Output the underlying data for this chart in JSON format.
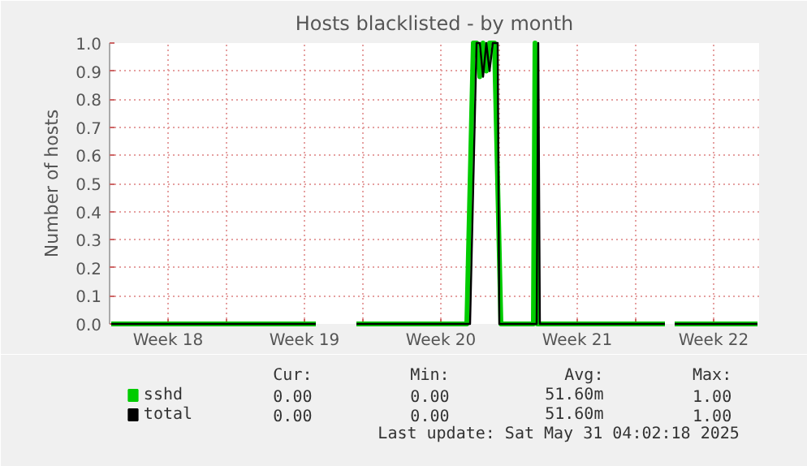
{
  "chart_data": {
    "type": "line",
    "title": "Hosts blacklisted - by month",
    "ylabel": "Number of hosts",
    "x": [
      "2025-04-28T02:00",
      "2025-05-08T14:00",
      "2025-05-09T02:00",
      "2025-05-10T16:00",
      "2025-05-16T12:00",
      "2025-05-16T20:00",
      "2025-05-17T00:00",
      "2025-05-17T04:00",
      "2025-05-17T08:00",
      "2025-05-17T12:00",
      "2025-05-17T16:00",
      "2025-05-17T22:00",
      "2025-05-18T00:00",
      "2025-05-19T22:00",
      "2025-05-20T00:00",
      "2025-05-20T02:00",
      "2025-05-26T12:00",
      "2025-05-26T18:00",
      "2025-05-27T00:00",
      "2025-05-31T06:00"
    ],
    "series": [
      {
        "name": "sshd",
        "color": "#00cc00",
        "x": [
          "2025-04-28T02:00",
          "2025-05-08T14:00",
          "2025-05-09T02:00",
          "2025-05-10T16:00",
          "2025-05-16T08:00",
          "2025-05-16T16:00",
          "2025-05-16T20:00",
          "2025-05-17T00:00",
          "2025-05-17T04:00",
          "2025-05-17T08:00",
          "2025-05-17T12:00",
          "2025-05-17T18:00",
          "2025-05-18T02:00",
          "2025-05-19T18:00",
          "2025-05-19T20:00",
          "2025-05-19T23:00",
          "2025-05-26T12:00",
          "2025-05-26T18:00",
          "2025-05-27T00:00",
          "2025-05-31T06:00"
        ],
        "values": [
          0,
          0,
          null,
          0,
          0,
          1,
          1,
          0.88,
          1,
          0.9,
          1,
          1,
          0,
          0,
          1,
          0,
          0,
          null,
          0,
          0
        ]
      },
      {
        "name": "total",
        "color": "#000000",
        "values": [
          0,
          0,
          null,
          0,
          0,
          1,
          1,
          0.88,
          1,
          0.9,
          1,
          1,
          0,
          0,
          1,
          0,
          0,
          null,
          0,
          0
        ]
      }
    ],
    "xlim": [
      "2025-04-28",
      "2025-05-31T08:00"
    ],
    "xticks": [
      {
        "value": "2025-05-01",
        "label": "Week 18"
      },
      {
        "value": "2025-05-04",
        "label": null
      },
      {
        "value": "2025-05-08",
        "label": "Week 19"
      },
      {
        "value": "2025-05-11",
        "label": null
      },
      {
        "value": "2025-05-15",
        "label": "Week 20"
      },
      {
        "value": "2025-05-18",
        "label": null
      },
      {
        "value": "2025-05-22",
        "label": "Week 21"
      },
      {
        "value": "2025-05-25",
        "label": null
      },
      {
        "value": "2025-05-29",
        "label": "Week 22"
      }
    ],
    "ylim": [
      0,
      1
    ],
    "yticks": [
      {
        "value": 0,
        "label": "0.0"
      },
      {
        "value": 0.1,
        "label": "0.1"
      },
      {
        "value": 0.2,
        "label": "0.2"
      },
      {
        "value": 0.3,
        "label": "0.3"
      },
      {
        "value": 0.4,
        "label": "0.4"
      },
      {
        "value": 0.5,
        "label": "0.5"
      },
      {
        "value": 0.6,
        "label": "0.6"
      },
      {
        "value": 0.7,
        "label": "0.7"
      },
      {
        "value": 0.8,
        "label": "0.8"
      },
      {
        "value": 0.9,
        "label": "0.9"
      },
      {
        "value": 1,
        "label": "1.0"
      }
    ],
    "grid": true,
    "legend": "bottom",
    "marker": "none",
    "line_style": "solid",
    "annotations": [
      "Cur:",
      "Min:",
      "Avg:",
      "Max:",
      "0.00",
      "0.00",
      "51.60m",
      "1.00",
      "0.00",
      "0.00",
      "51.60m",
      "1.00",
      "Last update: Sat May 31 04:02:18 2025"
    ]
  }
}
